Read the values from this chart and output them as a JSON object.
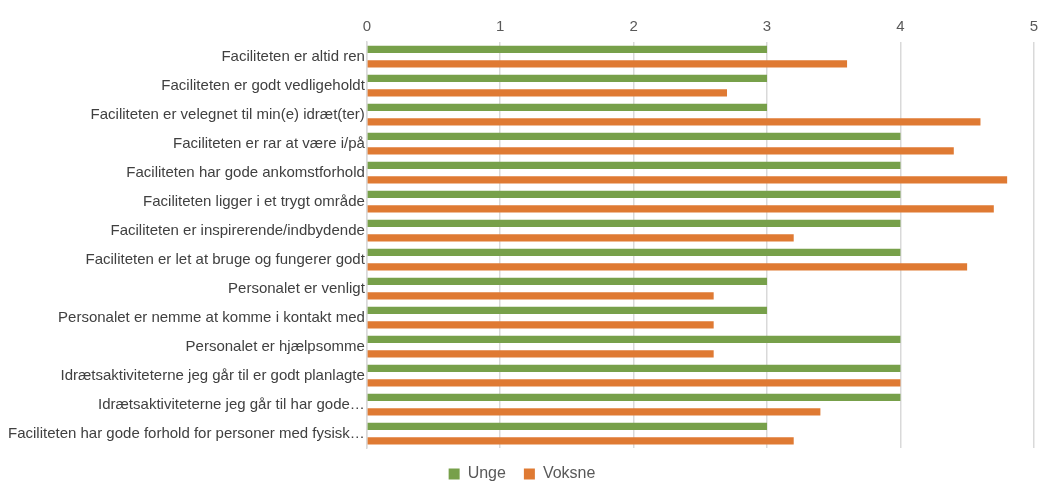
{
  "chart_data": {
    "type": "bar",
    "orientation": "horizontal",
    "categories": [
      "Faciliteten er altid ren",
      "Faciliteten er godt vedligeholdt",
      "Faciliteten er velegnet til min(e) idræt(ter)",
      "Faciliteten er rar at være i/på",
      "Faciliteten har gode ankomstforhold",
      "Faciliteten ligger i et trygt område",
      "Faciliteten er inspirerende/indbydende",
      "Faciliteten er let at bruge og fungerer godt",
      "Personalet er venligt",
      "Personalet er nemme at komme i kontakt med",
      "Personalet er hjælpsomme",
      "Idrætsaktiviteterne jeg går til er godt planlagte",
      "Idrætsaktiviteterne jeg går til har gode…",
      "Faciliteten har gode forhold for personer med fysisk…"
    ],
    "series": [
      {
        "name": "Unge",
        "color": "#77a04a",
        "values": [
          3,
          3,
          3,
          4,
          4,
          4,
          4,
          4,
          3,
          3,
          4,
          4,
          4,
          3
        ]
      },
      {
        "name": "Voksne",
        "color": "#df7a33",
        "values": [
          3.6,
          2.7,
          4.6,
          4.4,
          4.8,
          4.7,
          3.2,
          4.5,
          2.6,
          2.6,
          2.6,
          4.0,
          3.4,
          3.2
        ]
      }
    ],
    "xlim": [
      0,
      5
    ],
    "xticks": [
      0,
      1,
      2,
      3,
      4,
      5
    ],
    "grid": "x",
    "legend": "bottom"
  }
}
